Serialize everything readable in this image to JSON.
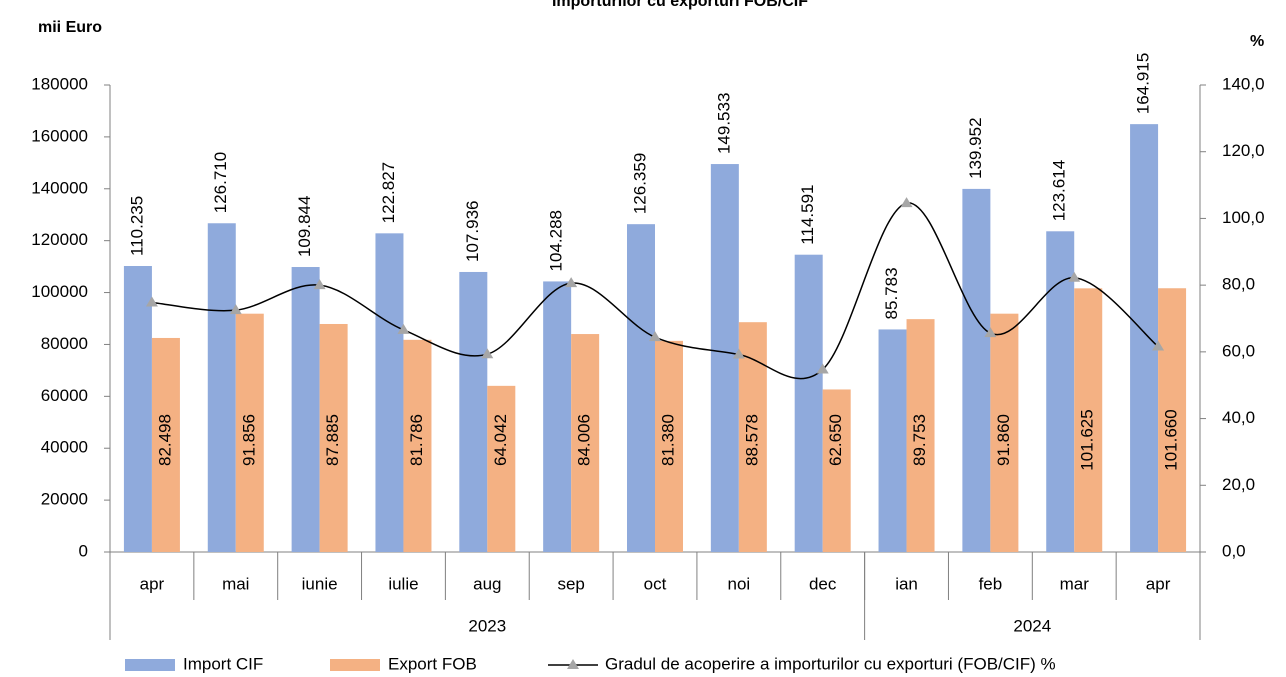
{
  "chart_data": {
    "type": "bar",
    "title": "Importurilor cu exporturi FOB/CIF",
    "y_label": "mii Euro",
    "y2_label": "%",
    "categories": [
      "apr",
      "mai",
      "iunie",
      "iulie",
      "aug",
      "sep",
      "oct",
      "noi",
      "dec",
      "ian",
      "feb",
      "mar",
      "apr"
    ],
    "groups": [
      {
        "label": "2023",
        "count": 9
      },
      {
        "label": "2024",
        "count": 4
      }
    ],
    "series": [
      {
        "name": "Import CIF",
        "color": "#8faadc",
        "values": [
          110235,
          126710,
          109844,
          122827,
          107936,
          104288,
          126359,
          149533,
          114591,
          85783,
          139952,
          123614,
          164915
        ],
        "value_labels": [
          "110.235",
          "126.710",
          "109.844",
          "122.827",
          "107.936",
          "104.288",
          "126.359",
          "149.533",
          "114.591",
          "85.783",
          "139.952",
          "123.614",
          "164.915"
        ]
      },
      {
        "name": "Export FOB",
        "color": "#f4b183",
        "values": [
          82498,
          91856,
          87885,
          81786,
          64042,
          84006,
          81380,
          88578,
          62650,
          89753,
          91860,
          101625,
          101660
        ],
        "value_labels": [
          "82.498",
          "91.856",
          "87.885",
          "81.786",
          "64.042",
          "84.006",
          "81.380",
          "88.578",
          "62.650",
          "89.753",
          "91.860",
          "101.625",
          "101.660"
        ]
      },
      {
        "name": "Gradul de acoperire a importurilor cu exporturi (FOB/CIF) %",
        "type": "line",
        "axis": "y2",
        "color": "#000000",
        "marker_color": "#a6a6a6",
        "values": [
          74.8,
          72.5,
          80.0,
          66.6,
          59.3,
          80.6,
          64.4,
          59.2,
          54.7,
          104.6,
          65.6,
          82.2,
          61.6
        ]
      }
    ],
    "ylim": [
      0,
      180000
    ],
    "yticks": [
      0,
      20000,
      40000,
      60000,
      80000,
      100000,
      120000,
      140000,
      160000,
      180000
    ],
    "y2lim": [
      0,
      140
    ],
    "y2ticks": [
      {
        "value": 0,
        "label": "0,0"
      },
      {
        "value": 20,
        "label": "20,0"
      },
      {
        "value": 40,
        "label": "40,0"
      },
      {
        "value": 60,
        "label": "60,0"
      },
      {
        "value": 80,
        "label": "80,0"
      },
      {
        "value": 100,
        "label": "100,0"
      },
      {
        "value": 120,
        "label": "120,0"
      },
      {
        "value": 140,
        "label": "140,0"
      }
    ],
    "grid": false,
    "legend": "bottom"
  }
}
